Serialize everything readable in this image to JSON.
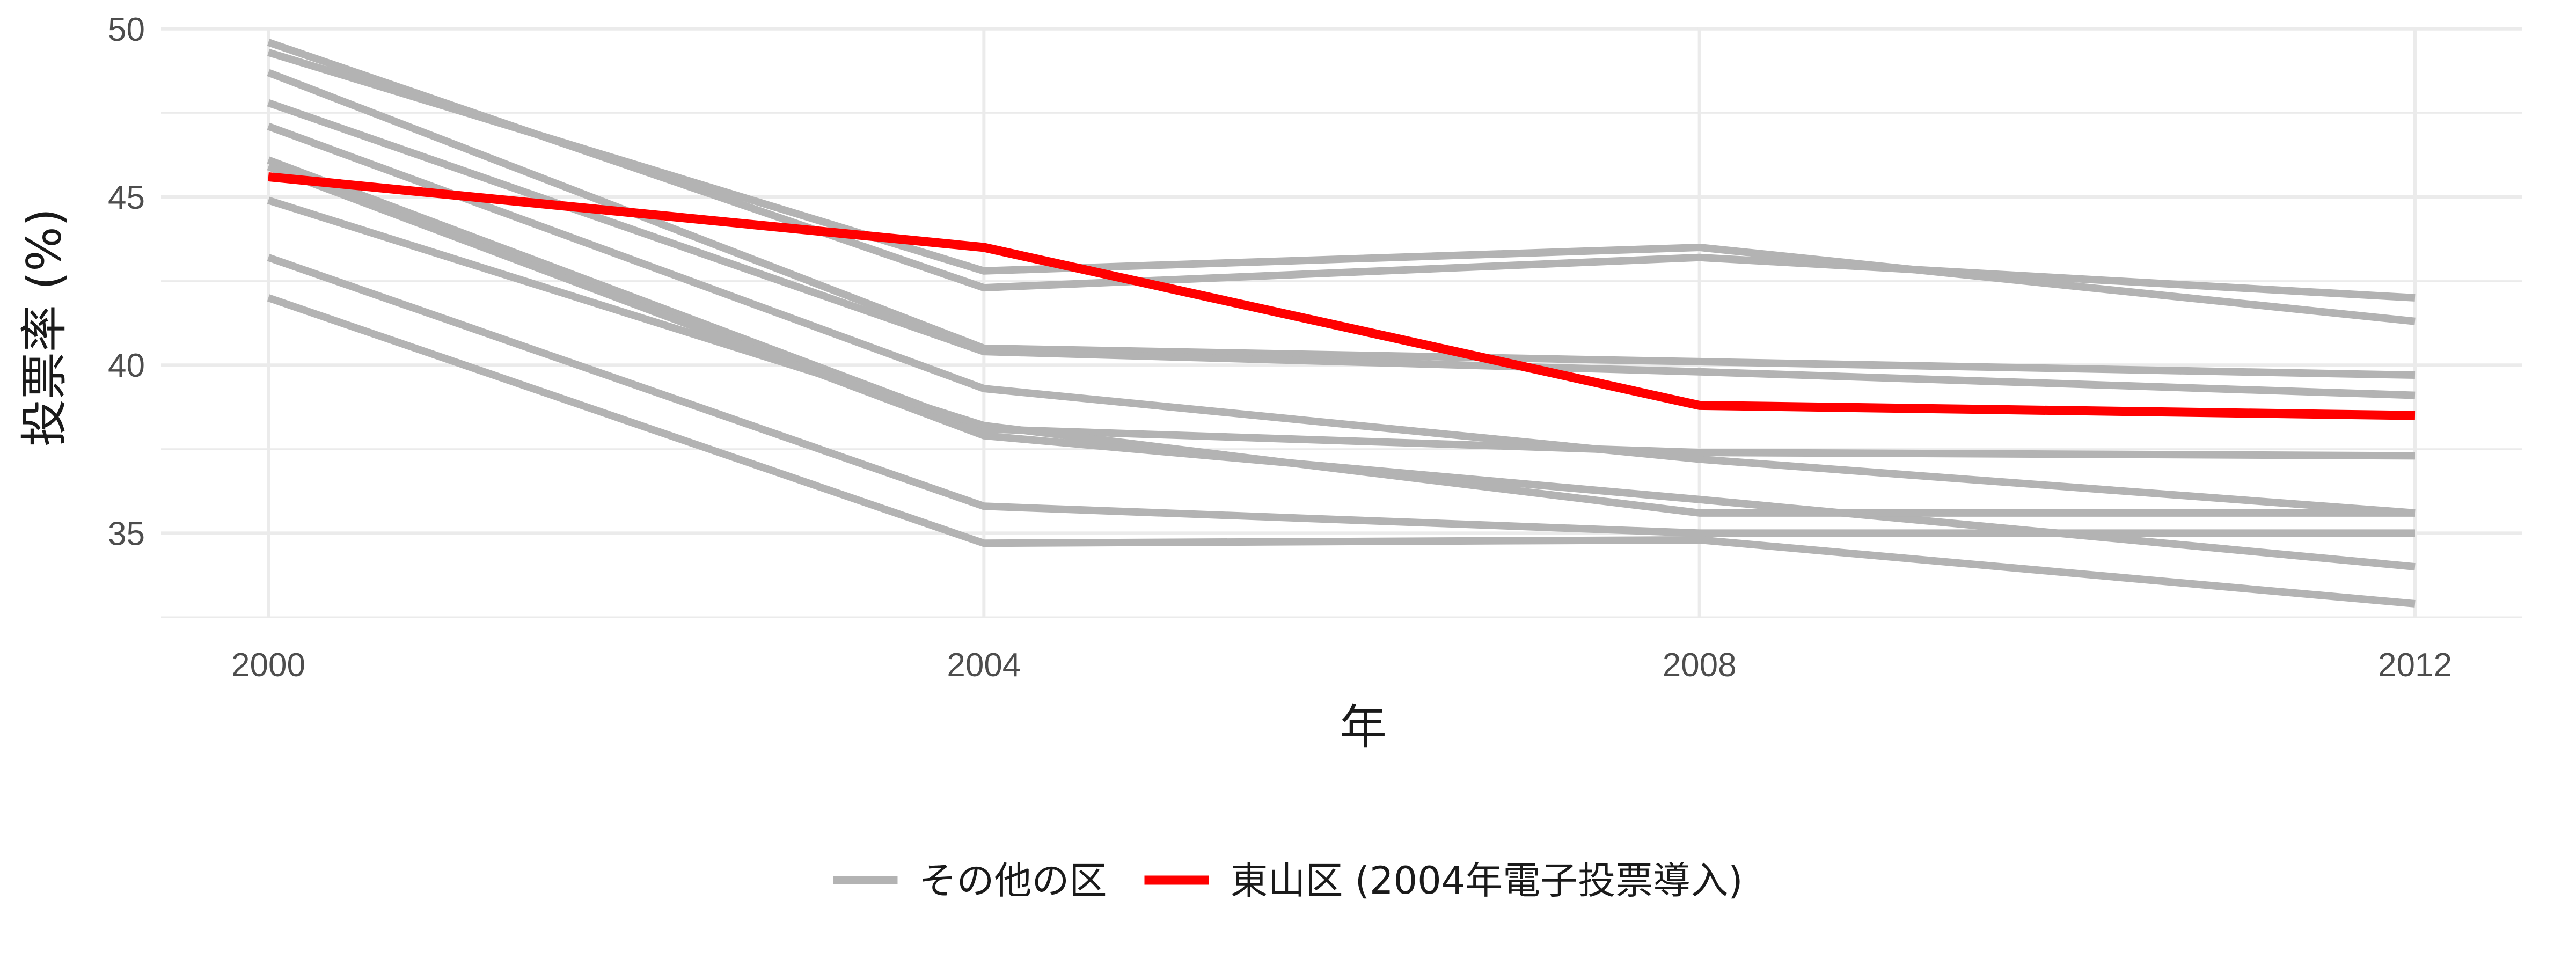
{
  "chart_data": {
    "type": "line",
    "xlabel": "年",
    "ylabel": "投票率 (%)",
    "x": [
      2000,
      2004,
      2008,
      2012
    ],
    "xlim": [
      1999.4,
      2012.6
    ],
    "ylim": [
      32.5,
      50.3
    ],
    "y_ticks": [
      35,
      40,
      45,
      50
    ],
    "grid": true,
    "legend_position": "bottom",
    "colors": {
      "other": "#b3b3b3",
      "highlight": "#ff0000",
      "grid": "#ebebeb"
    },
    "legend": [
      {
        "key": "other",
        "label": "その他の区",
        "color": "#b3b3b3"
      },
      {
        "key": "highlight",
        "label": "東山区 (2004年電子投票導入)",
        "color": "#ff0000"
      }
    ],
    "series": [
      {
        "group": "other",
        "values": [
          49.6,
          42.3,
          43.2,
          42.0
        ]
      },
      {
        "group": "other",
        "values": [
          49.3,
          42.8,
          43.5,
          41.3
        ]
      },
      {
        "group": "other",
        "values": [
          48.7,
          40.5,
          40.1,
          39.7
        ]
      },
      {
        "group": "other",
        "values": [
          47.8,
          40.4,
          39.8,
          39.1
        ]
      },
      {
        "group": "other",
        "values": [
          47.1,
          39.3,
          37.2,
          35.6
        ]
      },
      {
        "group": "other",
        "values": [
          46.1,
          38.1,
          37.4,
          37.3
        ]
      },
      {
        "group": "other",
        "values": [
          45.9,
          37.9,
          36.0,
          34.0
        ]
      },
      {
        "group": "other",
        "values": [
          44.9,
          38.2,
          35.6,
          35.6
        ]
      },
      {
        "group": "other",
        "values": [
          43.2,
          35.8,
          35.0,
          35.0
        ]
      },
      {
        "group": "other",
        "values": [
          42.0,
          34.7,
          34.8,
          32.9
        ]
      },
      {
        "group": "highlight",
        "values": [
          45.6,
          43.5,
          38.8,
          38.5
        ]
      }
    ]
  }
}
